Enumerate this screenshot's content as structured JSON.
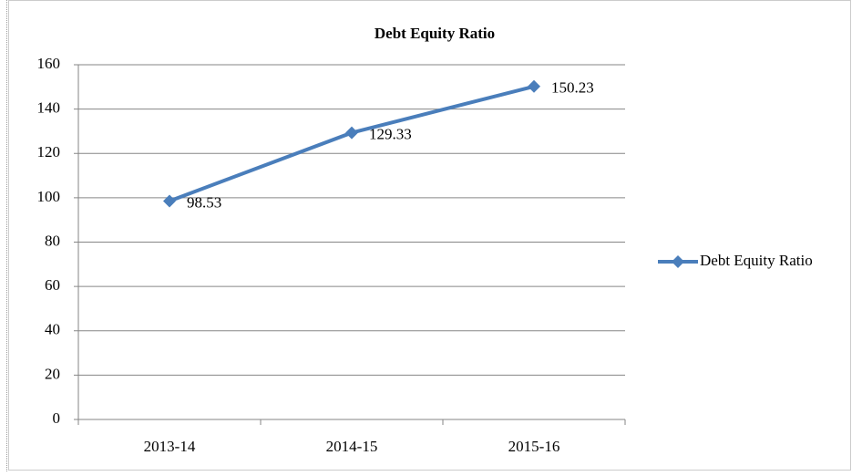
{
  "chart_data": {
    "type": "line",
    "title": "Debt Equity Ratio",
    "categories": [
      "2013-14",
      "2014-15",
      "2015-16"
    ],
    "series": [
      {
        "name": "Debt Equity Ratio",
        "color": "#4a7ebb",
        "values": [
          98.53,
          129.33,
          150.23
        ]
      }
    ],
    "ylim": [
      0,
      160
    ],
    "yticks": [
      0,
      20,
      40,
      60,
      80,
      100,
      120,
      140,
      160
    ],
    "grid": true,
    "legend": "right",
    "data_labels": true
  }
}
